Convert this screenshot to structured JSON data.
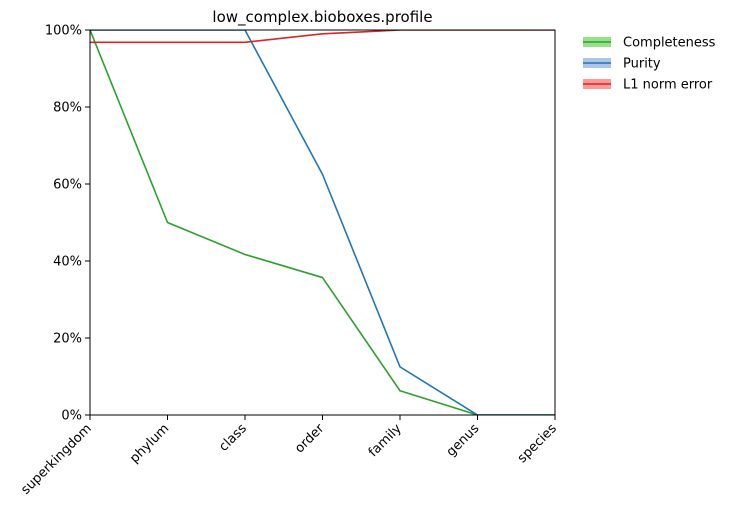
{
  "chart_data": {
    "type": "line",
    "title": "low_complex.bioboxes.profile",
    "xlabel": "",
    "ylabel": "",
    "categories": [
      "superkingdom",
      "phylum",
      "class",
      "order",
      "family",
      "genus",
      "species"
    ],
    "ylim": [
      0,
      100
    ],
    "yticks": [
      0,
      20,
      40,
      60,
      80,
      100
    ],
    "ytick_labels": [
      "0%",
      "20%",
      "40%",
      "60%",
      "80%",
      "100%"
    ],
    "grid": false,
    "legend_position": "outside-top-right",
    "series": [
      {
        "name": "Completeness",
        "color": "#2ca02c",
        "band_color": "#98df8a",
        "values": [
          100,
          50,
          41.7,
          35.7,
          6.3,
          0,
          0
        ]
      },
      {
        "name": "Purity",
        "color": "#1f77b4",
        "band_color": "#aec7e8",
        "values": [
          100,
          100,
          100,
          62.5,
          12.5,
          0,
          0
        ]
      },
      {
        "name": "L1 norm error",
        "color": "#d62728",
        "band_color": "#ff9896",
        "values": [
          96.8,
          96.8,
          96.8,
          99.0,
          100,
          100,
          100
        ]
      }
    ]
  }
}
